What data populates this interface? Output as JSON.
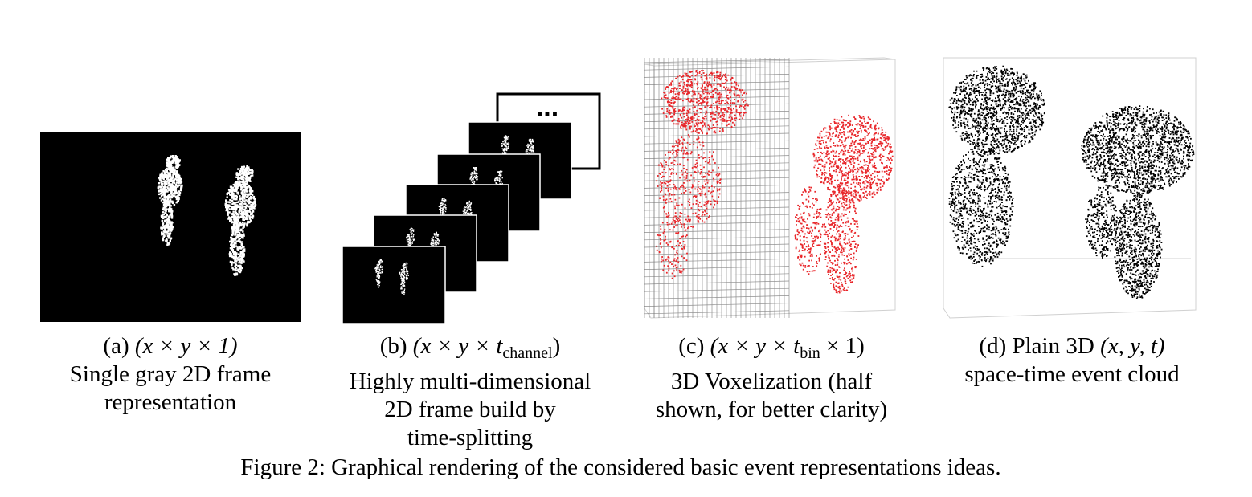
{
  "panels": [
    {
      "label": "(a)",
      "math_text": "(x × y × 1)",
      "lines": [
        "Single gray 2D frame",
        "representation"
      ]
    },
    {
      "label": "(b)",
      "math_text": "(x × y × t",
      "math_sub": "channel",
      "math_end": ")",
      "dots": "...",
      "lines": [
        "Highly multi-dimensional",
        "2D frame build by",
        "time-splitting"
      ]
    },
    {
      "label": "(c)",
      "math_text": "(x × y × t",
      "math_sub": "bin",
      "math_end": " × 1)",
      "lines": [
        "3D Voxelization (half",
        "shown, for better clarity)"
      ]
    },
    {
      "label": "(d)",
      "label_text": "Plain 3D",
      "math_text": "(x, y, t)",
      "lines": [
        "space-time event cloud"
      ]
    }
  ],
  "figure_caption": "Figure 2: Graphical rendering of the considered basic event representations ideas.",
  "colors": {
    "frame": "#000000",
    "events_white": "#ffffff",
    "voxel_red": "#e8262a",
    "box": "#d0d0d0"
  }
}
